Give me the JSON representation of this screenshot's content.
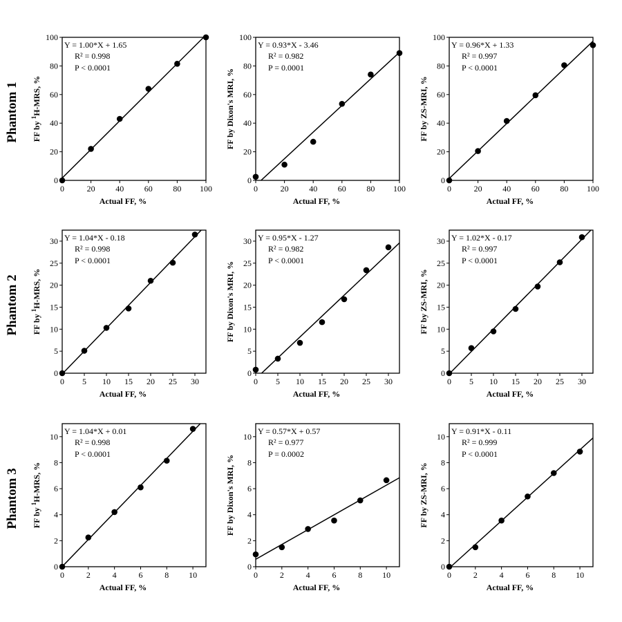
{
  "chart_data": [
    {
      "type": "scatter",
      "row_label": "Phantom 1",
      "x": [
        0,
        20,
        40,
        60,
        80,
        100
      ],
      "y": [
        0,
        22,
        43,
        64,
        81.5,
        100
      ],
      "fit": {
        "slope": 1.0,
        "intercept": 1.65
      },
      "xlim": [
        0,
        100
      ],
      "ylim": [
        0,
        100
      ],
      "xticks": [
        0,
        20,
        40,
        60,
        80,
        100
      ],
      "yticks": [
        0,
        20,
        40,
        60,
        80,
        100
      ],
      "xlabel": "Actual FF, %",
      "ylabel_main": "FF by ",
      "ylabel_sup": "1",
      "ylabel_rest": "H-MRS, %",
      "equation": "Y = 1.00*X + 1.65",
      "r2": "R² = 0.998",
      "p": "P < 0.0001"
    },
    {
      "type": "scatter",
      "x": [
        0,
        20,
        40,
        60,
        80,
        100
      ],
      "y": [
        2.5,
        11,
        27,
        53.5,
        74,
        89
      ],
      "fit": {
        "slope": 0.93,
        "intercept": -3.46
      },
      "xlim": [
        0,
        100
      ],
      "ylim": [
        0,
        100
      ],
      "xticks": [
        0,
        20,
        40,
        60,
        80,
        100
      ],
      "yticks": [
        0,
        20,
        40,
        60,
        80,
        100
      ],
      "xlabel": "Actual FF, %",
      "ylabel_main": "FF by Dixon's MRI, %",
      "equation": "Y = 0.93*X - 3.46",
      "r2": "R² = 0.982",
      "p": "P = 0.0001"
    },
    {
      "type": "scatter",
      "x": [
        0,
        20,
        40,
        60,
        80,
        100
      ],
      "y": [
        0,
        20.5,
        41.5,
        59.5,
        80.5,
        94.5
      ],
      "fit": {
        "slope": 0.96,
        "intercept": 1.33
      },
      "xlim": [
        0,
        100
      ],
      "ylim": [
        0,
        100
      ],
      "xticks": [
        0,
        20,
        40,
        60,
        80,
        100
      ],
      "yticks": [
        0,
        20,
        40,
        60,
        80,
        100
      ],
      "xlabel": "Actual FF, %",
      "ylabel_main": "FF by ZS-MRI, %",
      "equation": "Y = 0.96*X + 1.33",
      "r2": "R² = 0.997",
      "p": "P < 0.0001"
    },
    {
      "type": "scatter",
      "row_label": "Phantom 2",
      "x": [
        0,
        5,
        10,
        15,
        20,
        25,
        30
      ],
      "y": [
        0,
        5.1,
        10.3,
        14.7,
        21,
        25.1,
        31.5
      ],
      "fit": {
        "slope": 1.04,
        "intercept": -0.18
      },
      "xlim": [
        0,
        32.5
      ],
      "ylim": [
        0,
        32.5
      ],
      "xticks": [
        0,
        5,
        10,
        15,
        20,
        25,
        30
      ],
      "yticks": [
        0,
        5,
        10,
        15,
        20,
        25,
        30
      ],
      "xlabel": "Actual FF, %",
      "ylabel_main": "FF by ",
      "ylabel_sup": "1",
      "ylabel_rest": "H-MRS, %",
      "equation": "Y = 1.04*X - 0.18",
      "r2": "R² = 0.998",
      "p": "P < 0.0001"
    },
    {
      "type": "scatter",
      "x": [
        0,
        5,
        10,
        15,
        20,
        25,
        30
      ],
      "y": [
        0.8,
        3.3,
        6.9,
        11.6,
        16.8,
        23.4,
        28.6
      ],
      "fit": {
        "slope": 0.95,
        "intercept": -1.27
      },
      "xlim": [
        0,
        32.5
      ],
      "ylim": [
        0,
        32.5
      ],
      "xticks": [
        0,
        5,
        10,
        15,
        20,
        25,
        30
      ],
      "yticks": [
        0,
        5,
        10,
        15,
        20,
        25,
        30
      ],
      "xlabel": "Actual FF, %",
      "ylabel_main": "FF by Dixon's MRI, %",
      "equation": "Y = 0.95*X - 1.27",
      "r2": "R² = 0.982",
      "p": "P < 0.0001"
    },
    {
      "type": "scatter",
      "x": [
        0,
        5,
        10,
        15,
        20,
        25,
        30
      ],
      "y": [
        0,
        5.7,
        9.5,
        14.6,
        19.7,
        25.2,
        30.9
      ],
      "fit": {
        "slope": 1.02,
        "intercept": -0.17
      },
      "xlim": [
        0,
        32.5
      ],
      "ylim": [
        0,
        32.5
      ],
      "xticks": [
        0,
        5,
        10,
        15,
        20,
        25,
        30
      ],
      "yticks": [
        0,
        5,
        10,
        15,
        20,
        25,
        30
      ],
      "xlabel": "Actual FF, %",
      "ylabel_main": "FF by ZS-MRI, %",
      "equation": "Y = 1.02*X - 0.17",
      "r2": "R² = 0.997",
      "p": "P < 0.0001"
    },
    {
      "type": "scatter",
      "row_label": "Phantom 3",
      "x": [
        0,
        2,
        4,
        6,
        8,
        10
      ],
      "y": [
        0,
        2.25,
        4.2,
        6.1,
        8.15,
        10.6
      ],
      "fit": {
        "slope": 1.04,
        "intercept": 0.01
      },
      "xlim": [
        0,
        11
      ],
      "ylim": [
        0,
        11
      ],
      "xticks": [
        0,
        2,
        4,
        6,
        8,
        10
      ],
      "yticks": [
        0,
        2,
        4,
        6,
        8,
        10
      ],
      "xlabel": "Actual FF, %",
      "ylabel_main": "FF by ",
      "ylabel_sup": "1",
      "ylabel_rest": "H-MRS, %",
      "equation": "Y = 1.04*X + 0.01",
      "r2": "R² = 0.998",
      "p": "P < 0.0001"
    },
    {
      "type": "scatter",
      "x": [
        0,
        2,
        4,
        6,
        8,
        10
      ],
      "y": [
        0.95,
        1.5,
        2.9,
        3.55,
        5.1,
        6.65
      ],
      "fit": {
        "slope": 0.57,
        "intercept": 0.57
      },
      "xlim": [
        0,
        11
      ],
      "ylim": [
        0,
        11
      ],
      "xticks": [
        0,
        2,
        4,
        6,
        8,
        10
      ],
      "yticks": [
        0,
        2,
        4,
        6,
        8,
        10
      ],
      "xlabel": "Actual FF, %",
      "ylabel_main": "FF by Dixon's MRI, %",
      "equation": "Y = 0.57*X + 0.57",
      "r2": "R² = 0.977",
      "p": "P = 0.0002"
    },
    {
      "type": "scatter",
      "x": [
        0,
        2,
        4,
        6,
        8,
        10
      ],
      "y": [
        0,
        1.5,
        3.55,
        5.4,
        7.2,
        8.85
      ],
      "fit": {
        "slope": 0.91,
        "intercept": -0.11
      },
      "xlim": [
        0,
        11
      ],
      "ylim": [
        0,
        11
      ],
      "xticks": [
        0,
        2,
        4,
        6,
        8,
        10
      ],
      "yticks": [
        0,
        2,
        4,
        6,
        8,
        10
      ],
      "xlabel": "Actual FF, %",
      "ylabel_main": "FF by ZS-MRI, %",
      "equation": "Y = 0.91*X - 0.11",
      "r2": "R² = 0.999",
      "p": "P < 0.0001"
    }
  ]
}
